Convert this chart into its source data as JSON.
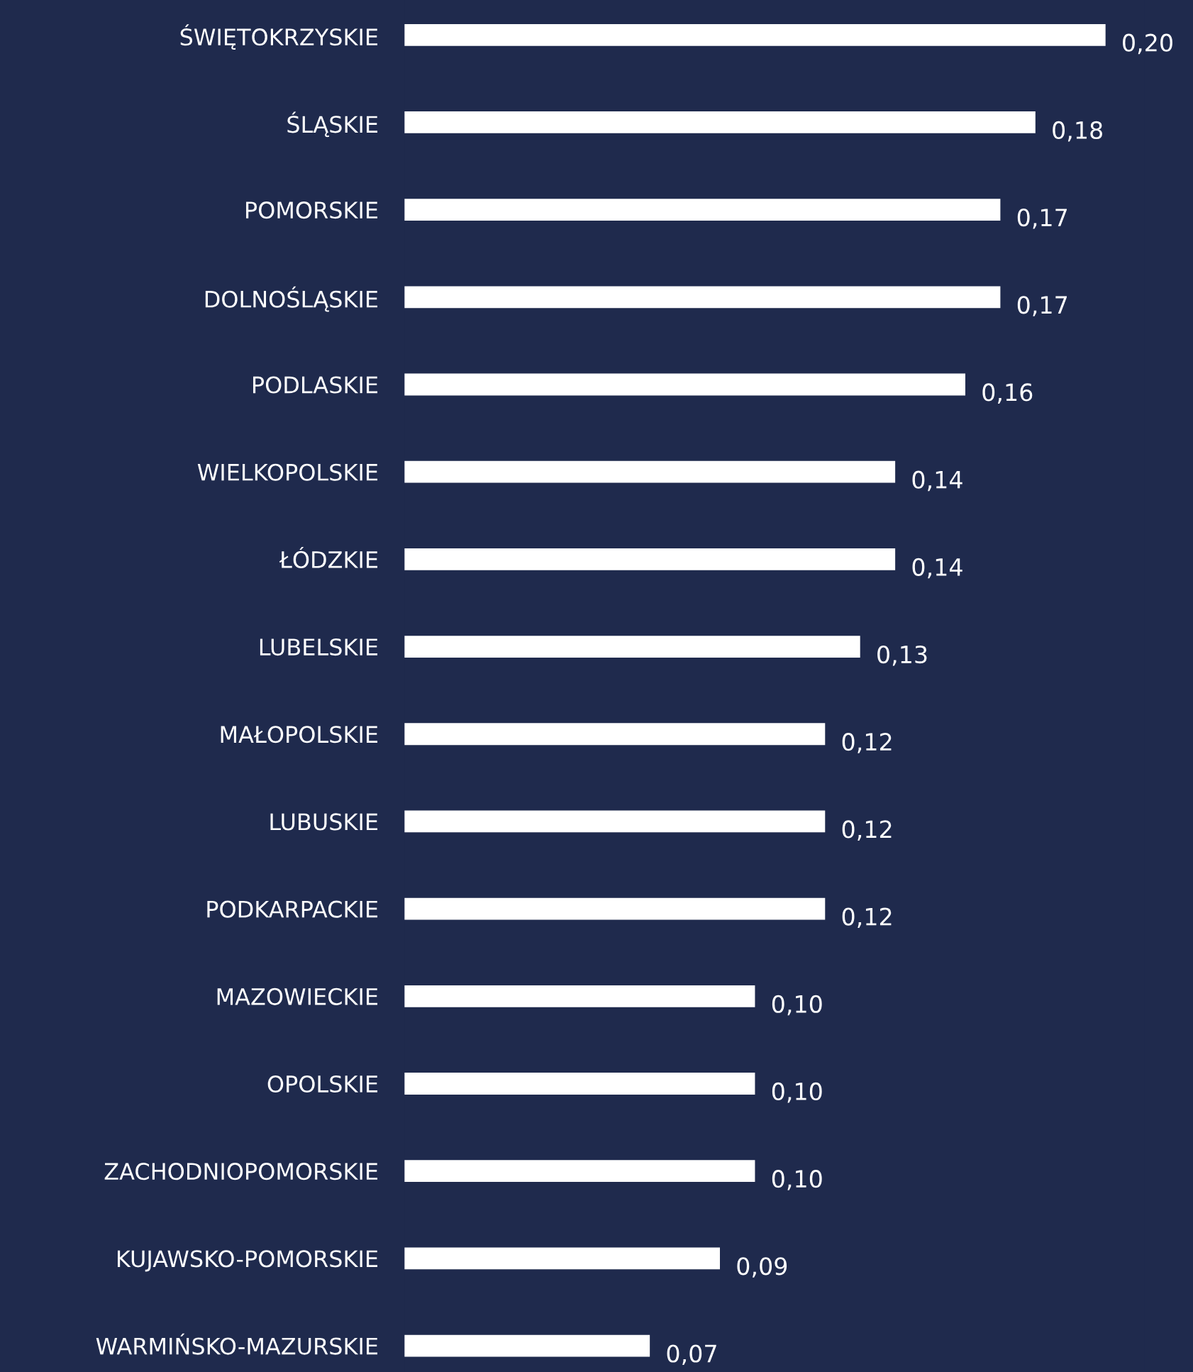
{
  "chart_data": {
    "type": "bar",
    "orientation": "horizontal",
    "categories": [
      "ŚWIĘTOKRZYSKIE",
      "ŚLĄSKIE",
      "POMORSKIE",
      "DOLNOŚLĄSKIE",
      "PODLASKIE",
      "WIELKOPOLSKIE",
      "ŁÓDZKIE",
      "LUBELSKIE",
      "MAŁOPOLSKIE",
      "LUBUSKIE",
      "PODKARPACKIE",
      "MAZOWIECKIE",
      "OPOLSKIE",
      "ZACHODNIOPOMORSKIE",
      "KUJAWSKO-POMORSKIE",
      "WARMIŃSKO-MAZURSKIE"
    ],
    "values": [
      0.2,
      0.18,
      0.17,
      0.17,
      0.16,
      0.14,
      0.14,
      0.13,
      0.12,
      0.12,
      0.12,
      0.1,
      0.1,
      0.1,
      0.09,
      0.07
    ],
    "value_labels": [
      "0,20",
      "0,18",
      "0,17",
      "0,17",
      "0,16",
      "0,14",
      "0,14",
      "0,13",
      "0,12",
      "0,12",
      "0,12",
      "0,10",
      "0,10",
      "0,10",
      "0,09",
      "0,07"
    ],
    "color": "#ffffff",
    "grid": false
  }
}
